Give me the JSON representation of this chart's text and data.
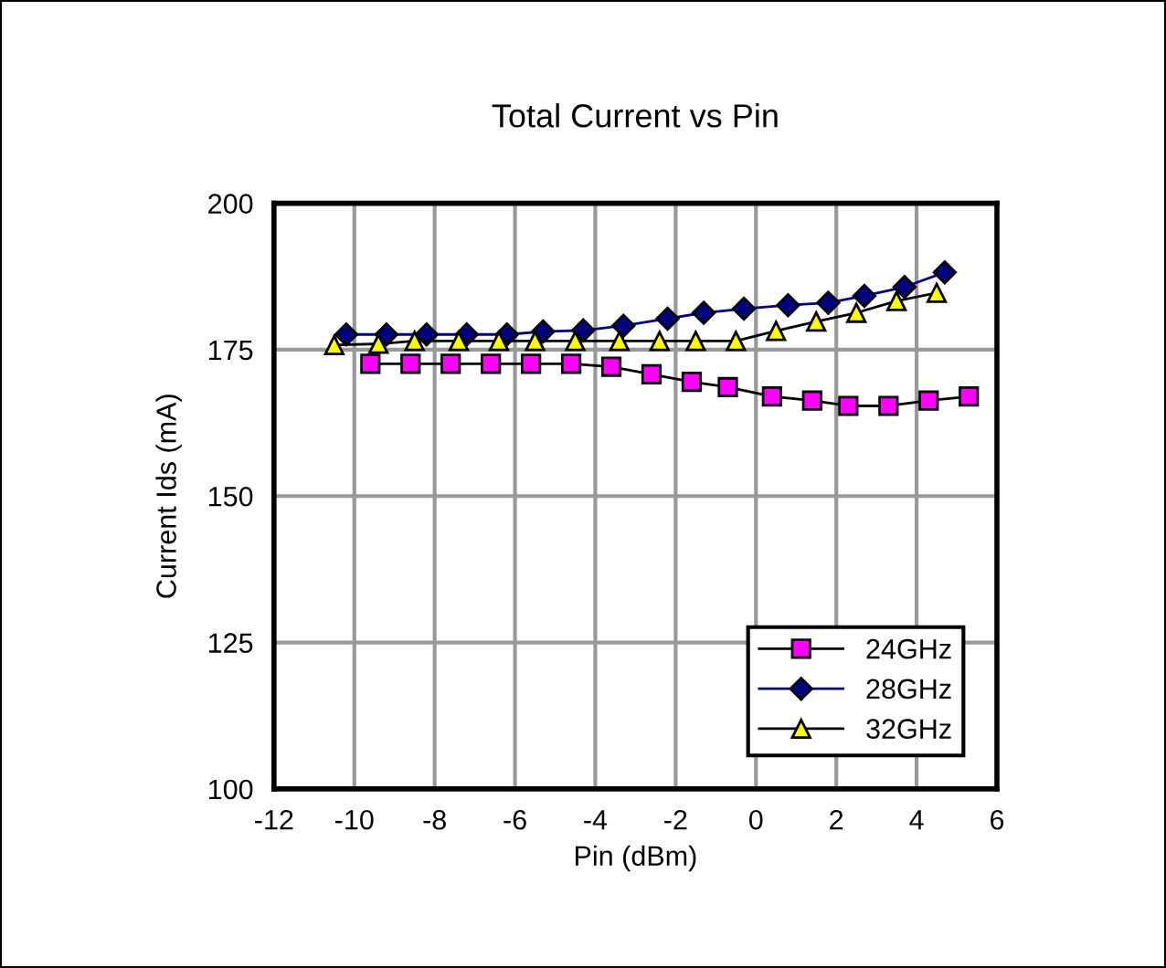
{
  "chart_data": {
    "type": "line",
    "title": "Total Current vs Pin",
    "xlabel": "Pin (dBm)",
    "ylabel": "Current Ids (mA)",
    "xlim": [
      -12,
      6
    ],
    "xticks": [
      -12,
      -10,
      -8,
      -6,
      -4,
      -2,
      0,
      2,
      4,
      6
    ],
    "ylim": [
      100,
      200
    ],
    "yticks": [
      100,
      125,
      150,
      175,
      200
    ],
    "grid": true,
    "legend": "bottom right",
    "line_style": "solid",
    "series": [
      {
        "name": "24GHz",
        "color": "#ff00ff",
        "marker": "square",
        "x": [
          -9.6,
          -8.6,
          -7.6,
          -6.6,
          -5.6,
          -4.6,
          -3.6,
          -2.6,
          -1.6,
          -0.7,
          0.4,
          1.4,
          2.3,
          3.3,
          4.3,
          5.3
        ],
        "values": [
          172.6,
          172.6,
          172.6,
          172.6,
          172.6,
          172.6,
          172.1,
          170.8,
          169.5,
          168.6,
          167.0,
          166.3,
          165.4,
          165.4,
          166.3,
          167.0
        ]
      },
      {
        "name": "28GHz",
        "color": "#000080",
        "marker": "diamond",
        "x": [
          -10.2,
          -9.2,
          -8.2,
          -7.2,
          -6.2,
          -5.3,
          -4.3,
          -3.3,
          -2.2,
          -1.3,
          -0.3,
          0.8,
          1.8,
          2.7,
          3.7,
          4.7
        ],
        "values": [
          177.6,
          177.6,
          177.6,
          177.6,
          177.6,
          178.1,
          178.3,
          179.1,
          180.3,
          181.3,
          182.0,
          182.6,
          183.0,
          184.2,
          185.7,
          188.2
        ]
      },
      {
        "name": "32GHz",
        "color": "#ffff00",
        "marker": "triangle",
        "x": [
          -10.5,
          -9.4,
          -8.5,
          -7.4,
          -6.4,
          -5.5,
          -4.5,
          -3.4,
          -2.4,
          -1.5,
          -0.5,
          0.5,
          1.5,
          2.5,
          3.5,
          4.5
        ],
        "values": [
          175.8,
          176.0,
          176.5,
          176.5,
          176.5,
          176.5,
          176.5,
          176.5,
          176.5,
          176.5,
          176.5,
          178.2,
          179.8,
          181.3,
          183.3,
          184.7
        ]
      }
    ]
  }
}
